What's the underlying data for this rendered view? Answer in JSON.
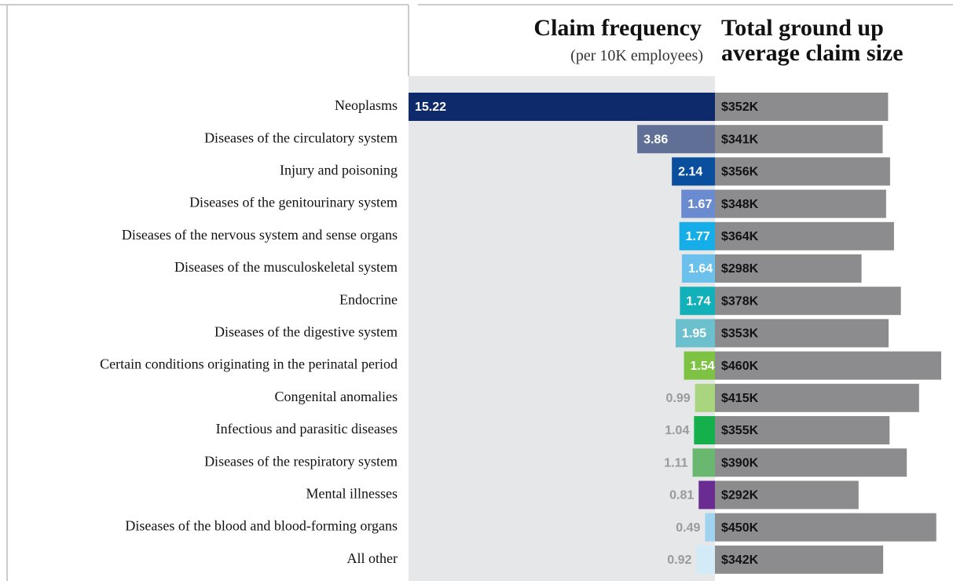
{
  "chart_data": [
    {
      "type": "bar",
      "orientation": "horizontal",
      "direction": "left",
      "title": "Claim frequency",
      "subtitle": "(per 10K employees)",
      "categories": [
        "Neoplasms",
        "Diseases of the circulatory system",
        "Injury and poisoning",
        "Diseases of the genitourinary system",
        "Diseases of the nervous system and sense organs",
        "Diseases of the musculoskeletal system",
        "Endocrine",
        "Diseases of the digestive system",
        "Certain conditions originating in the perinatal period",
        "Congenital anomalies",
        "Infectious and parasitic diseases",
        "Diseases of the respiratory system",
        "Mental illnesses",
        "Diseases of the blood and blood-forming organs",
        "All other"
      ],
      "values": [
        15.22,
        3.86,
        2.14,
        1.67,
        1.77,
        1.64,
        1.74,
        1.95,
        1.54,
        0.99,
        1.04,
        1.11,
        0.81,
        0.49,
        0.92
      ],
      "colors": [
        "#0f2a6b",
        "#5f6f96",
        "#0a4f9e",
        "#6a8bd0",
        "#16aee8",
        "#6cc1ec",
        "#12b0b8",
        "#6cbfcc",
        "#7dc242",
        "#a9d57f",
        "#15b04b",
        "#6ab76f",
        "#6a2c91",
        "#9fd3ef",
        "#d3ebf7"
      ]
    },
    {
      "type": "bar",
      "orientation": "horizontal",
      "direction": "right",
      "title": "Total ground up average claim size",
      "values": [
        352000,
        341000,
        356000,
        348000,
        364000,
        298000,
        378000,
        353000,
        460000,
        415000,
        355000,
        390000,
        292000,
        450000,
        342000
      ],
      "value_labels": [
        "$352K",
        "$341K",
        "$356K",
        "$348K",
        "$364K",
        "$298K",
        "$378K",
        "$353K",
        "$460K",
        "$415K",
        "$355K",
        "$390K",
        "$292K",
        "$450K",
        "$342K"
      ],
      "color": "#8c8c8f"
    }
  ]
}
